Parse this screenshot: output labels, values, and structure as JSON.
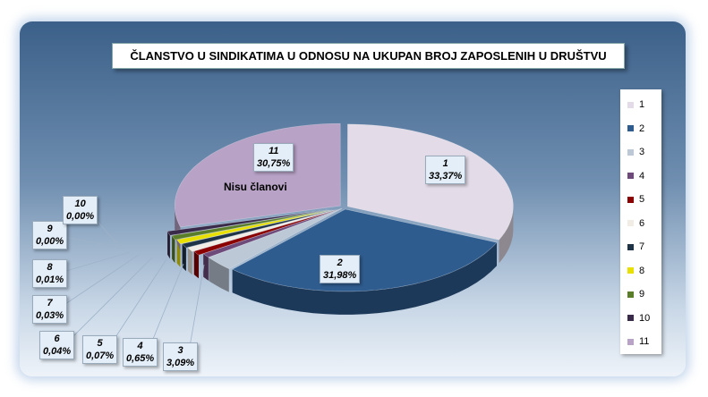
{
  "chart_data": {
    "type": "pie",
    "title": "ČLANSTVO U SINDIKATIMA U  ODNOSU NA UKUPAN BROJ ZAPOSLENIH  U DRUŠTVU",
    "categories": [
      "1",
      "2",
      "3",
      "4",
      "5",
      "6",
      "7",
      "8",
      "9",
      "10",
      "11"
    ],
    "values": [
      33.37,
      31.98,
      3.09,
      0.65,
      0.07,
      0.04,
      0.03,
      0.01,
      0.0,
      0.0,
      30.75
    ],
    "value_labels": [
      "33,37%",
      "31,98%",
      "3,09%",
      "0,65%",
      "0,07%",
      "0,04%",
      "0,03%",
      "0,01%",
      "0,00%",
      "0,00%",
      "30,75%"
    ],
    "colors": [
      "#e3dce8",
      "#2f5c8f",
      "#bcc8d6",
      "#6d4a7a",
      "#8b0000",
      "#f2ede4",
      "#1f3347",
      "#e8e000",
      "#5a7d2a",
      "#3a2a4a",
      "#b8a2c6"
    ],
    "annotation": "Nisu članovi",
    "legend_position": "right",
    "style": "3d-exploded"
  }
}
